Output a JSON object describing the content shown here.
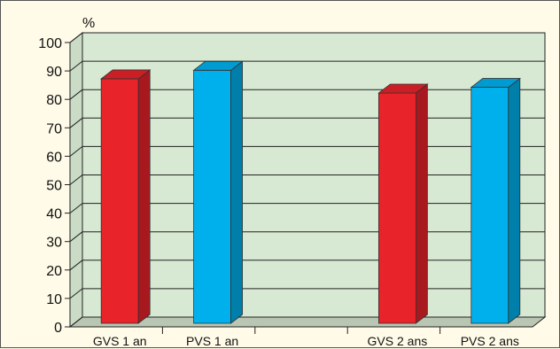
{
  "chart_data": {
    "type": "bar",
    "title": "",
    "ylabel": "%",
    "xlabel": "",
    "ylim": [
      0,
      100
    ],
    "yticks": [
      0,
      10,
      20,
      30,
      40,
      50,
      60,
      70,
      80,
      90,
      100
    ],
    "grid": true,
    "style": "3d",
    "categories": [
      "GVS 1 an",
      "PVS 1 an",
      "",
      "GVS 2 ans",
      "PVS 2 ans"
    ],
    "values": [
      86,
      89,
      null,
      81,
      83
    ],
    "bar_colors": [
      "#e8232a",
      "#00b0ec",
      null,
      "#e8232a",
      "#00b0ec"
    ]
  },
  "colors": {
    "plot_back": "#d7e8d3",
    "plot_floor": "#b9c6b3",
    "plot_side": "#cbdcc6",
    "background": "#fffbe8",
    "grid": "#222222"
  }
}
